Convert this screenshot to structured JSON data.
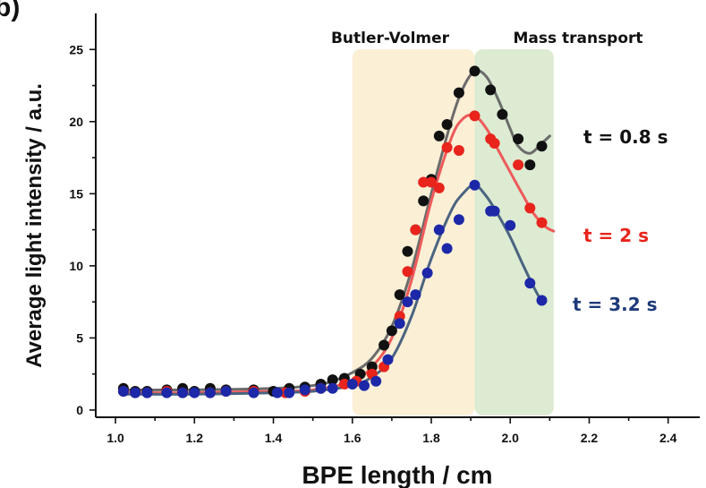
{
  "chart_data": {
    "type": "scatter",
    "panel_label": "b)",
    "xlabel": "BPE length / cm",
    "ylabel": "Average light intensity / a.u.",
    "xlim": [
      0.95,
      2.48
    ],
    "ylim": [
      -0.5,
      27.5
    ],
    "xticks": [
      "1.0",
      "1.2",
      "1.4",
      "1.6",
      "1.8",
      "2.0",
      "2.2",
      "2.4"
    ],
    "yticks": [
      "0",
      "5",
      "10",
      "15",
      "20",
      "25"
    ],
    "grid": false,
    "regions": [
      {
        "label": "Butler-Volmer",
        "x0": 1.6,
        "x1": 1.91,
        "color": "#fbefd6"
      },
      {
        "label": "Mass transport",
        "x0": 1.91,
        "x1": 2.11,
        "color": "#dcebd2"
      }
    ],
    "series": [
      {
        "name": "t = 0.8 s",
        "color": "#111111",
        "line_color": "#6b6b6b",
        "x": [
          1.02,
          1.05,
          1.08,
          1.13,
          1.17,
          1.2,
          1.24,
          1.28,
          1.35,
          1.4,
          1.44,
          1.48,
          1.52,
          1.55,
          1.58,
          1.62,
          1.65,
          1.68,
          1.7,
          1.72,
          1.74,
          1.76,
          1.78,
          1.8,
          1.82,
          1.84,
          1.87,
          1.91,
          1.95,
          1.98,
          2.02,
          2.05,
          2.08
        ],
        "y": [
          1.5,
          1.3,
          1.3,
          1.4,
          1.5,
          1.3,
          1.5,
          1.4,
          1.4,
          1.3,
          1.5,
          1.6,
          1.8,
          2.1,
          2.2,
          2.5,
          3.0,
          4.5,
          5.5,
          8.0,
          11.0,
          12.5,
          14.5,
          16.0,
          19.0,
          19.8,
          22.0,
          23.5,
          22.2,
          20.5,
          18.8,
          17.0,
          18.3
        ],
        "fit_x": [
          1.02,
          1.2,
          1.4,
          1.5,
          1.55,
          1.6,
          1.65,
          1.7,
          1.75,
          1.8,
          1.85,
          1.88,
          1.91,
          1.94,
          1.97,
          2.0,
          2.02,
          2.05,
          2.08,
          2.1
        ],
        "fit_y": [
          1.4,
          1.4,
          1.5,
          1.7,
          2.0,
          2.6,
          3.6,
          5.8,
          9.7,
          15.0,
          20.0,
          22.3,
          23.5,
          23.1,
          21.5,
          19.5,
          18.3,
          17.8,
          18.5,
          19.0
        ]
      },
      {
        "name": "t = 2 s",
        "color": "#e8241c",
        "line_color": "#ee5a5a",
        "x": [
          1.02,
          1.05,
          1.08,
          1.13,
          1.17,
          1.24,
          1.28,
          1.35,
          1.43,
          1.48,
          1.52,
          1.58,
          1.61,
          1.65,
          1.68,
          1.72,
          1.74,
          1.76,
          1.78,
          1.8,
          1.82,
          1.84,
          1.87,
          1.91,
          1.95,
          1.96,
          2.02,
          2.05,
          2.08
        ],
        "y": [
          1.3,
          1.2,
          1.2,
          1.3,
          1.2,
          1.2,
          1.3,
          1.3,
          1.2,
          1.3,
          1.5,
          1.8,
          2.0,
          2.5,
          3.0,
          6.5,
          9.6,
          12.5,
          15.8,
          15.8,
          15.4,
          18.2,
          18.0,
          20.4,
          18.8,
          18.5,
          17.0,
          14.0,
          13.0
        ],
        "fit_x": [
          1.02,
          1.2,
          1.4,
          1.5,
          1.6,
          1.65,
          1.7,
          1.75,
          1.8,
          1.85,
          1.88,
          1.91,
          1.94,
          1.97,
          2.0,
          2.03,
          2.06,
          2.09,
          2.11
        ],
        "fit_y": [
          1.2,
          1.2,
          1.3,
          1.4,
          2.0,
          3.0,
          5.0,
          9.0,
          14.5,
          18.8,
          20.2,
          20.4,
          19.5,
          18.0,
          16.5,
          15.0,
          13.6,
          12.7,
          12.4
        ]
      },
      {
        "name": "t = 3.2 s",
        "color": "#1c28a8",
        "line_color": "#4a6480",
        "x": [
          1.02,
          1.05,
          1.08,
          1.13,
          1.17,
          1.2,
          1.24,
          1.28,
          1.35,
          1.41,
          1.44,
          1.48,
          1.52,
          1.55,
          1.6,
          1.63,
          1.66,
          1.69,
          1.72,
          1.74,
          1.76,
          1.79,
          1.82,
          1.84,
          1.87,
          1.91,
          1.95,
          1.96,
          2.0,
          2.05,
          2.08
        ],
        "y": [
          1.3,
          1.2,
          1.2,
          1.2,
          1.2,
          1.2,
          1.2,
          1.3,
          1.2,
          1.2,
          1.2,
          1.4,
          1.5,
          1.5,
          1.8,
          1.7,
          2.0,
          3.5,
          6.0,
          7.5,
          8.0,
          9.5,
          12.5,
          11.2,
          13.2,
          15.6,
          13.8,
          13.8,
          12.8,
          8.8,
          7.6
        ],
        "fit_x": [
          1.02,
          1.2,
          1.4,
          1.5,
          1.6,
          1.65,
          1.7,
          1.75,
          1.8,
          1.85,
          1.88,
          1.91,
          1.94,
          1.97,
          2.0,
          2.03,
          2.06,
          2.08
        ],
        "fit_y": [
          1.1,
          1.1,
          1.2,
          1.3,
          1.7,
          2.3,
          3.6,
          6.5,
          10.5,
          13.8,
          15.0,
          15.6,
          14.8,
          13.5,
          12.0,
          10.2,
          8.5,
          7.5
        ]
      }
    ]
  }
}
